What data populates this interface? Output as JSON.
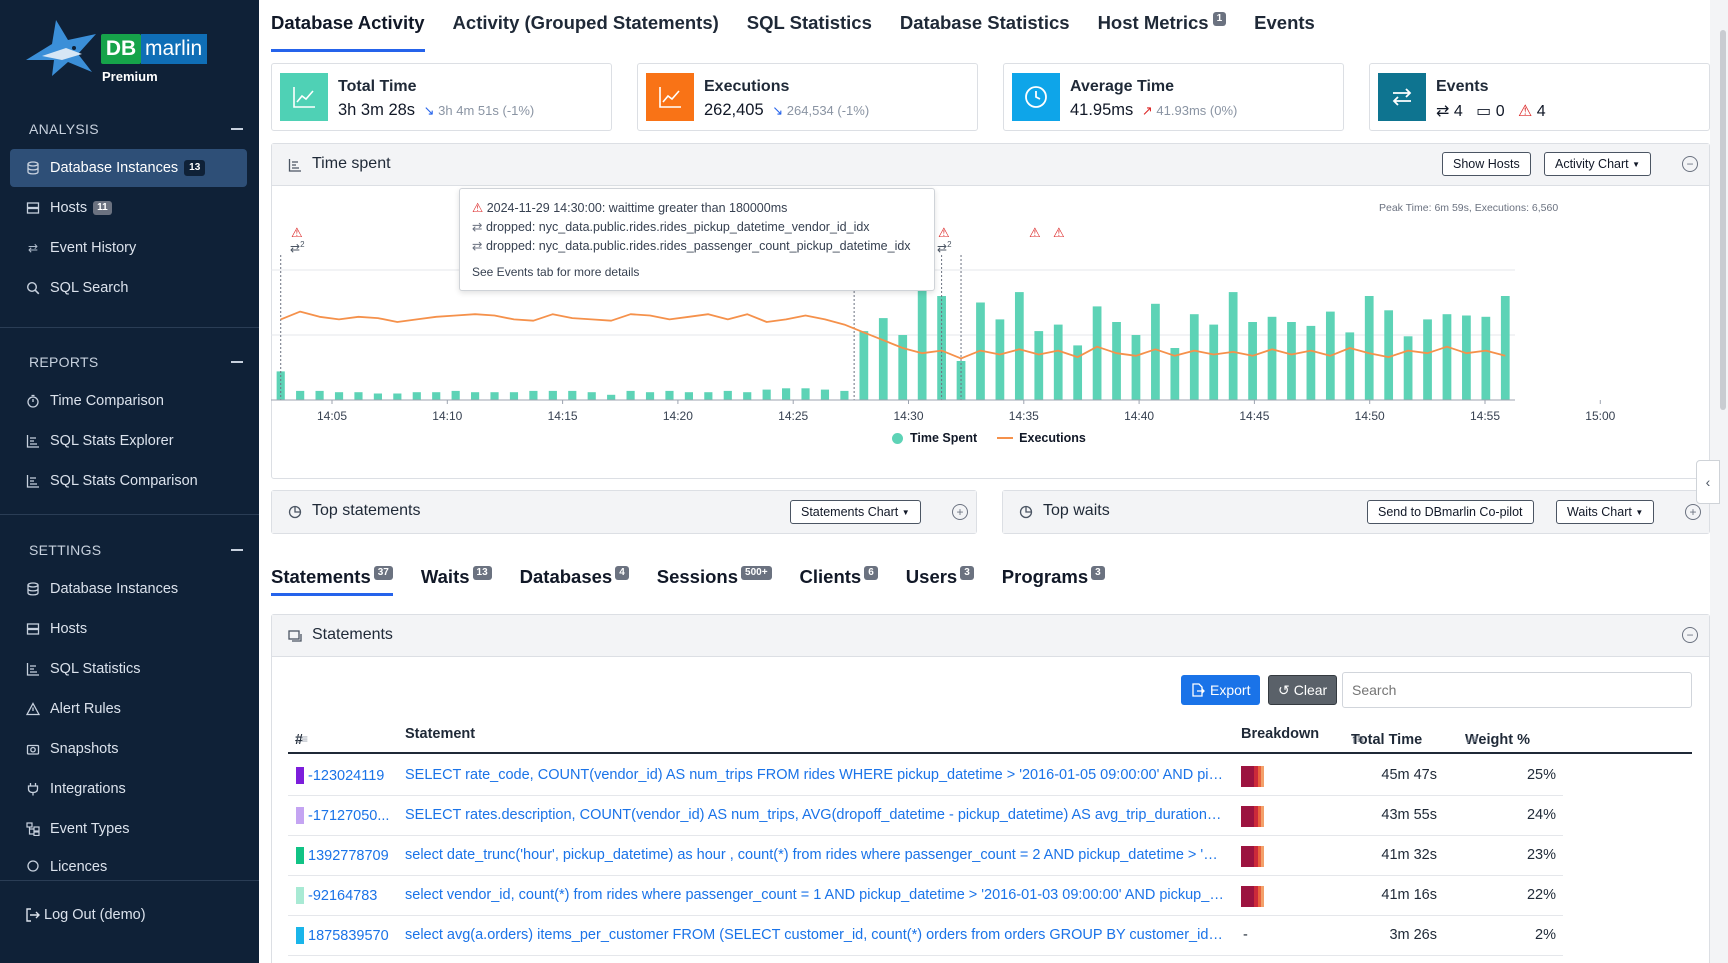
{
  "brand": {
    "db": "DB",
    "marlin": "marlin",
    "tier": "Premium"
  },
  "sidebar": {
    "analysis": {
      "title": "ANALYSIS",
      "items": [
        {
          "label": "Database Instances",
          "badge": "13",
          "active": true
        },
        {
          "label": "Hosts",
          "badge": "11"
        },
        {
          "label": "Event History"
        },
        {
          "label": "SQL Search"
        }
      ]
    },
    "reports": {
      "title": "REPORTS",
      "items": [
        {
          "label": "Time Comparison"
        },
        {
          "label": "SQL Stats Explorer"
        },
        {
          "label": "SQL Stats Comparison"
        }
      ]
    },
    "settings": {
      "title": "SETTINGS",
      "items": [
        {
          "label": "Database Instances"
        },
        {
          "label": "Hosts"
        },
        {
          "label": "SQL Statistics"
        },
        {
          "label": "Alert Rules"
        },
        {
          "label": "Snapshots"
        },
        {
          "label": "Integrations"
        },
        {
          "label": "Event Types"
        },
        {
          "label": "Licences"
        }
      ]
    },
    "logout": "Log Out (demo)"
  },
  "topnav": [
    {
      "label": "Database Activity",
      "active": true
    },
    {
      "label": "Activity (Grouped Statements)"
    },
    {
      "label": "SQL Statistics"
    },
    {
      "label": "Database Statistics"
    },
    {
      "label": "Host Metrics",
      "badge": "1"
    },
    {
      "label": "Events"
    }
  ],
  "cards": {
    "total_time": {
      "title": "Total Time",
      "value": "3h 3m 28s",
      "compare": "3h 4m 51s (-1%)",
      "color": "#4fd1b5"
    },
    "executions": {
      "title": "Executions",
      "value": "262,405",
      "compare": "264,534 (-1%)",
      "color": "#f97316"
    },
    "average_time": {
      "title": "Average Time",
      "value": "41.95ms",
      "compare": "41.93ms (0%)",
      "color": "#0ea5e9"
    },
    "events": {
      "title": "Events",
      "changes": "4",
      "snapshots": "0",
      "alerts": "4",
      "color": "#0e7490"
    }
  },
  "time_spent": {
    "title": "Time spent",
    "show_hosts": "Show Hosts",
    "activity_chart": "Activity Chart",
    "peak": "Peak Time: 6m 59s, Executions: 6,560",
    "tooltip": {
      "line1": "2024-11-29 14:30:00: waittime greater than 180000ms",
      "line2": "dropped: nyc_data.public.rides.rides_pickup_datetime_vendor_id_idx",
      "line3": "dropped: nyc_data.public.rides.rides_passenger_count_pickup_datetime_idx",
      "footer": "See Events tab for more details"
    },
    "legend": {
      "time": "Time Spent",
      "exec": "Executions"
    },
    "marker_counts": [
      "2",
      "2"
    ]
  },
  "chart_data": {
    "type": "bar",
    "x_ticks": [
      "14:05",
      "14:10",
      "14:15",
      "14:20",
      "14:25",
      "14:30",
      "14:35",
      "14:40",
      "14:45",
      "14:50",
      "14:55",
      "15:00"
    ],
    "series": [
      {
        "name": "Time Spent",
        "type": "bar",
        "color": "#5dd3b6",
        "values": [
          0.22,
          0.07,
          0.07,
          0.06,
          0.06,
          0.05,
          0.05,
          0.06,
          0.06,
          0.07,
          0.06,
          0.06,
          0.06,
          0.07,
          0.07,
          0.07,
          0.06,
          0.04,
          0.07,
          0.06,
          0.07,
          0.06,
          0.06,
          0.07,
          0.06,
          0.08,
          0.09,
          0.09,
          0.08,
          0.07,
          0.53,
          0.63,
          0.5,
          0.84,
          0.8,
          0.3,
          0.75,
          0.62,
          0.83,
          0.53,
          0.58,
          0.42,
          0.72,
          0.6,
          0.5,
          0.74,
          0.4,
          0.66,
          0.58,
          0.83,
          0.6,
          0.64,
          0.6,
          0.57,
          0.68,
          0.52,
          0.8,
          0.69,
          0.49,
          0.62,
          0.66,
          0.65,
          0.64,
          0.8
        ]
      },
      {
        "name": "Executions",
        "type": "line",
        "color": "#f5914b",
        "values": [
          0.62,
          0.68,
          0.64,
          0.62,
          0.64,
          0.63,
          0.6,
          0.62,
          0.64,
          0.65,
          0.66,
          0.65,
          0.62,
          0.61,
          0.66,
          0.63,
          0.62,
          0.61,
          0.66,
          0.65,
          0.62,
          0.64,
          0.66,
          0.62,
          0.66,
          0.6,
          0.62,
          0.65,
          0.62,
          0.58,
          0.52,
          0.46,
          0.4,
          0.36,
          0.38,
          0.32,
          0.38,
          0.35,
          0.39,
          0.35,
          0.38,
          0.33,
          0.41,
          0.36,
          0.34,
          0.39,
          0.34,
          0.38,
          0.35,
          0.37,
          0.34,
          0.39,
          0.35,
          0.38,
          0.34,
          0.4,
          0.36,
          0.33,
          0.38,
          0.36,
          0.41,
          0.36,
          0.38,
          0.34
        ]
      }
    ],
    "ylim": [
      0,
      1
    ],
    "legend": "bottom",
    "grid": true
  },
  "top_statements": {
    "title": "Top statements",
    "chart_btn": "Statements Chart"
  },
  "top_waits": {
    "title": "Top waits",
    "copilot_btn": "Send to DBmarlin Co-pilot",
    "chart_btn": "Waits Chart"
  },
  "subtabs": [
    {
      "label": "Statements",
      "badge": "37",
      "active": true
    },
    {
      "label": "Waits",
      "badge": "13"
    },
    {
      "label": "Databases",
      "badge": "4"
    },
    {
      "label": "Sessions",
      "badge": "500+"
    },
    {
      "label": "Clients",
      "badge": "6"
    },
    {
      "label": "Users",
      "badge": "3"
    },
    {
      "label": "Programs",
      "badge": "3"
    }
  ],
  "statements": {
    "title": "Statements",
    "export": "Export",
    "clear": "Clear",
    "search_placeholder": "Search",
    "columns": {
      "num": "#",
      "statement": "Statement",
      "breakdown": "Breakdown",
      "total_time": "Total Time",
      "weight": "Weight %"
    },
    "rows": [
      {
        "id": "-123024119",
        "color": "#7c1ddb",
        "statement": "SELECT rate_code, COUNT(vendor_id) AS num_trips FROM rides WHERE pickup_datetime > '2016-01-05 09:00:00' AND picku...",
        "total": "45m 47s",
        "weight": "25%",
        "breakdown": true
      },
      {
        "id": "-17127050...",
        "color": "#c4a4f2",
        "statement": "SELECT rates.description, COUNT(vendor_id) AS num_trips, AVG(dropoff_datetime - pickup_datetime) AS avg_trip_duration, A...",
        "total": "43m 55s",
        "weight": "24%",
        "breakdown": true
      },
      {
        "id": "1392778709",
        "color": "#11c385",
        "statement": "select date_trunc('hour', pickup_datetime) as hour , count(*) from rides where passenger_count = 2 AND pickup_datetime > '20...",
        "total": "41m 32s",
        "weight": "23%",
        "breakdown": true
      },
      {
        "id": "-92164783",
        "color": "#a8ead4",
        "statement": "select vendor_id, count(*) from rides where passenger_count = 1 AND pickup_datetime > '2016-01-03 09:00:00' AND pickup_d...",
        "total": "41m 16s",
        "weight": "22%",
        "breakdown": true
      },
      {
        "id": "1875839570",
        "color": "#1ab5ea",
        "statement": "select avg(a.orders) items_per_customer FROM (SELECT customer_id, count(*) orders from orders GROUP BY customer_id ) a",
        "total": "3m 26s",
        "weight": "2%",
        "breakdown": false,
        "breakdown_text": "-"
      }
    ]
  }
}
